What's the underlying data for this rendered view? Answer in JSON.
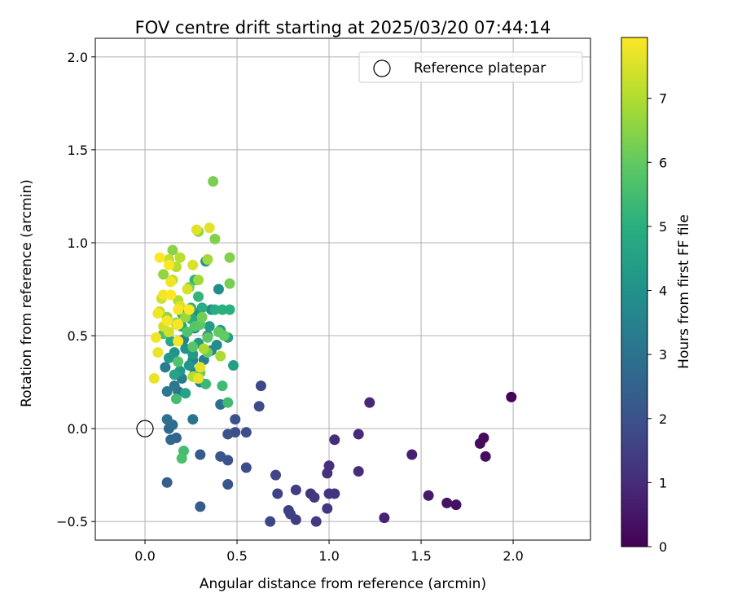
{
  "chart_data": {
    "type": "scatter",
    "title": "FOV centre drift starting at 2025/03/20 07:44:14",
    "xlabel": "Angular distance from reference (arcmin)",
    "ylabel": "Rotation from reference (arcmin)",
    "xlim": [
      -0.27,
      2.42
    ],
    "ylim": [
      -0.6,
      2.1
    ],
    "xticks": [
      "0.0",
      "0.5",
      "1.0",
      "1.5",
      "2.0"
    ],
    "xtick_values": [
      0,
      0.5,
      1.0,
      1.5,
      2.0
    ],
    "yticks": [
      "−0.5",
      "0.0",
      "0.5",
      "1.0",
      "1.5",
      "2.0"
    ],
    "ytick_values": [
      -0.5,
      0,
      0.5,
      1.0,
      1.5,
      2.0
    ],
    "grid": true,
    "colormap": "viridis",
    "colorbar": {
      "label": "Hours from first FF file",
      "range": [
        0,
        7.95
      ],
      "ticks": [
        "0",
        "1",
        "2",
        "3",
        "4",
        "5",
        "6",
        "7"
      ],
      "tick_values": [
        0,
        1,
        2,
        3,
        4,
        5,
        6,
        7
      ]
    },
    "legend": {
      "position": "top-right",
      "label": "Reference platepar"
    },
    "reference_point": {
      "x": 0.0,
      "y": 0.0
    },
    "points": [
      {
        "x": 1.99,
        "y": 0.17,
        "c": 0.05
      },
      {
        "x": 1.84,
        "y": -0.05,
        "c": 0.2
      },
      {
        "x": 1.82,
        "y": -0.08,
        "c": 0.25
      },
      {
        "x": 1.85,
        "y": -0.15,
        "c": 0.3
      },
      {
        "x": 1.69,
        "y": -0.41,
        "c": 0.35
      },
      {
        "x": 1.64,
        "y": -0.4,
        "c": 0.45
      },
      {
        "x": 1.54,
        "y": -0.36,
        "c": 0.6
      },
      {
        "x": 1.45,
        "y": -0.14,
        "c": 0.75
      },
      {
        "x": 1.3,
        "y": -0.48,
        "c": 0.8
      },
      {
        "x": 1.22,
        "y": 0.14,
        "c": 0.9
      },
      {
        "x": 1.16,
        "y": -0.03,
        "c": 0.95
      },
      {
        "x": 1.16,
        "y": -0.23,
        "c": 1.0
      },
      {
        "x": 1.03,
        "y": -0.06,
        "c": 1.05
      },
      {
        "x": 1.0,
        "y": -0.2,
        "c": 1.1
      },
      {
        "x": 0.99,
        "y": -0.24,
        "c": 1.15
      },
      {
        "x": 1.03,
        "y": -0.35,
        "c": 1.2
      },
      {
        "x": 1.0,
        "y": -0.35,
        "c": 1.2
      },
      {
        "x": 0.9,
        "y": -0.35,
        "c": 1.25
      },
      {
        "x": 0.92,
        "y": -0.37,
        "c": 1.3
      },
      {
        "x": 0.99,
        "y": -0.43,
        "c": 1.3
      },
      {
        "x": 0.93,
        "y": -0.5,
        "c": 1.35
      },
      {
        "x": 0.82,
        "y": -0.33,
        "c": 1.4
      },
      {
        "x": 0.82,
        "y": -0.49,
        "c": 1.45
      },
      {
        "x": 0.78,
        "y": -0.44,
        "c": 1.5
      },
      {
        "x": 0.79,
        "y": -0.46,
        "c": 1.55
      },
      {
        "x": 0.72,
        "y": -0.35,
        "c": 1.6
      },
      {
        "x": 0.71,
        "y": -0.25,
        "c": 1.65
      },
      {
        "x": 0.68,
        "y": -0.5,
        "c": 1.7
      },
      {
        "x": 0.63,
        "y": 0.23,
        "c": 1.75
      },
      {
        "x": 0.62,
        "y": 0.12,
        "c": 1.8
      },
      {
        "x": 0.55,
        "y": -0.21,
        "c": 1.85
      },
      {
        "x": 0.55,
        "y": -0.02,
        "c": 1.9
      },
      {
        "x": 0.49,
        "y": -0.02,
        "c": 1.9
      },
      {
        "x": 0.49,
        "y": 0.05,
        "c": 1.95
      },
      {
        "x": 0.45,
        "y": -0.03,
        "c": 2.0
      },
      {
        "x": 0.45,
        "y": -0.17,
        "c": 2.05
      },
      {
        "x": 0.45,
        "y": -0.3,
        "c": 2.1
      },
      {
        "x": 0.41,
        "y": -0.15,
        "c": 2.15
      },
      {
        "x": 0.3,
        "y": -0.14,
        "c": 2.2
      },
      {
        "x": 0.3,
        "y": -0.42,
        "c": 2.3
      },
      {
        "x": 0.12,
        "y": -0.29,
        "c": 2.4
      },
      {
        "x": 0.17,
        "y": -0.05,
        "c": 2.5
      },
      {
        "x": 0.14,
        "y": -0.06,
        "c": 2.6
      },
      {
        "x": 0.13,
        "y": 0.0,
        "c": 2.7
      },
      {
        "x": 0.15,
        "y": 0.02,
        "c": 2.8
      },
      {
        "x": 0.12,
        "y": 0.05,
        "c": 2.9
      },
      {
        "x": 0.41,
        "y": 0.13,
        "c": 2.9
      },
      {
        "x": 0.26,
        "y": 0.05,
        "c": 3.0
      },
      {
        "x": 0.18,
        "y": 0.2,
        "c": 3.1
      },
      {
        "x": 0.12,
        "y": 0.2,
        "c": 3.2
      },
      {
        "x": 0.16,
        "y": 0.23,
        "c": 3.2
      },
      {
        "x": 0.11,
        "y": 0.33,
        "c": 3.3
      },
      {
        "x": 0.2,
        "y": 0.27,
        "c": 3.3
      },
      {
        "x": 0.27,
        "y": 0.3,
        "c": 3.4
      },
      {
        "x": 0.32,
        "y": 0.37,
        "c": 3.4
      },
      {
        "x": 0.36,
        "y": 0.42,
        "c": 3.5
      },
      {
        "x": 0.3,
        "y": 0.25,
        "c": 3.5
      },
      {
        "x": 0.26,
        "y": 0.37,
        "c": 3.6
      },
      {
        "x": 0.21,
        "y": 0.48,
        "c": 3.6
      },
      {
        "x": 0.27,
        "y": 0.54,
        "c": 3.7
      },
      {
        "x": 0.34,
        "y": 0.5,
        "c": 3.7
      },
      {
        "x": 0.39,
        "y": 0.45,
        "c": 3.8
      },
      {
        "x": 0.36,
        "y": 0.64,
        "c": 3.8
      },
      {
        "x": 0.28,
        "y": 0.62,
        "c": 3.9
      },
      {
        "x": 0.4,
        "y": 0.75,
        "c": 3.9
      },
      {
        "x": 0.33,
        "y": 0.9,
        "c": 4.0
      },
      {
        "x": 0.22,
        "y": 0.43,
        "c": 4.0
      },
      {
        "x": 0.24,
        "y": 0.34,
        "c": 4.1
      },
      {
        "x": 0.16,
        "y": 0.41,
        "c": 4.1
      },
      {
        "x": 0.13,
        "y": 0.38,
        "c": 4.2
      },
      {
        "x": 0.19,
        "y": 0.31,
        "c": 4.2
      },
      {
        "x": 0.26,
        "y": 0.4,
        "c": 4.3
      },
      {
        "x": 0.29,
        "y": 0.46,
        "c": 4.3
      },
      {
        "x": 0.35,
        "y": 0.55,
        "c": 4.4
      },
      {
        "x": 0.41,
        "y": 0.53,
        "c": 4.4
      },
      {
        "x": 0.45,
        "y": 0.49,
        "c": 4.5
      },
      {
        "x": 0.48,
        "y": 0.34,
        "c": 4.5
      },
      {
        "x": 0.22,
        "y": 0.19,
        "c": 4.6
      },
      {
        "x": 0.16,
        "y": 0.29,
        "c": 4.6
      },
      {
        "x": 0.14,
        "y": 0.47,
        "c": 4.7
      },
      {
        "x": 0.2,
        "y": 0.55,
        "c": 4.7
      },
      {
        "x": 0.25,
        "y": 0.59,
        "c": 4.8
      },
      {
        "x": 0.28,
        "y": 0.58,
        "c": 4.8
      },
      {
        "x": 0.31,
        "y": 0.65,
        "c": 4.9
      },
      {
        "x": 0.38,
        "y": 0.64,
        "c": 4.9
      },
      {
        "x": 0.42,
        "y": 0.64,
        "c": 5.0
      },
      {
        "x": 0.46,
        "y": 0.64,
        "c": 5.0
      },
      {
        "x": 0.27,
        "y": 0.8,
        "c": 5.1
      },
      {
        "x": 0.2,
        "y": 0.62,
        "c": 5.1
      },
      {
        "x": 0.25,
        "y": 0.65,
        "c": 5.2
      },
      {
        "x": 0.29,
        "y": 0.71,
        "c": 5.2
      },
      {
        "x": 0.33,
        "y": 0.24,
        "c": 5.3
      },
      {
        "x": 0.42,
        "y": 0.23,
        "c": 5.4
      },
      {
        "x": 0.45,
        "y": 0.14,
        "c": 5.4
      },
      {
        "x": 0.17,
        "y": 0.16,
        "c": 5.5
      },
      {
        "x": 0.21,
        "y": -0.12,
        "c": 5.5
      },
      {
        "x": 0.2,
        "y": -0.16,
        "c": 5.6
      },
      {
        "x": 0.1,
        "y": 0.51,
        "c": 5.6
      },
      {
        "x": 0.18,
        "y": 0.36,
        "c": 5.7
      },
      {
        "x": 0.23,
        "y": 0.52,
        "c": 5.7
      },
      {
        "x": 0.26,
        "y": 0.44,
        "c": 5.8
      },
      {
        "x": 0.27,
        "y": 0.55,
        "c": 5.8
      },
      {
        "x": 0.3,
        "y": 0.56,
        "c": 5.9
      },
      {
        "x": 0.34,
        "y": 0.49,
        "c": 5.9
      },
      {
        "x": 0.4,
        "y": 0.52,
        "c": 6.0
      },
      {
        "x": 0.43,
        "y": 0.5,
        "c": 6.0
      },
      {
        "x": 0.34,
        "y": 0.41,
        "c": 6.1
      },
      {
        "x": 0.3,
        "y": 0.3,
        "c": 6.1
      },
      {
        "x": 0.24,
        "y": 0.76,
        "c": 6.2
      },
      {
        "x": 0.31,
        "y": 0.6,
        "c": 6.2
      },
      {
        "x": 0.37,
        "y": 1.33,
        "c": 6.3
      },
      {
        "x": 0.46,
        "y": 0.78,
        "c": 6.3
      },
      {
        "x": 0.46,
        "y": 0.92,
        "c": 6.4
      },
      {
        "x": 0.38,
        "y": 1.02,
        "c": 6.4
      },
      {
        "x": 0.29,
        "y": 1.06,
        "c": 6.5
      },
      {
        "x": 0.15,
        "y": 0.96,
        "c": 6.5
      },
      {
        "x": 0.1,
        "y": 0.83,
        "c": 6.6
      },
      {
        "x": 0.12,
        "y": 0.6,
        "c": 6.6
      },
      {
        "x": 0.17,
        "y": 0.57,
        "c": 6.7
      },
      {
        "x": 0.22,
        "y": 0.6,
        "c": 6.7
      },
      {
        "x": 0.29,
        "y": 0.8,
        "c": 6.8
      },
      {
        "x": 0.34,
        "y": 0.91,
        "c": 6.8
      },
      {
        "x": 0.41,
        "y": 0.39,
        "c": 6.9
      },
      {
        "x": 0.32,
        "y": 0.43,
        "c": 6.9
      },
      {
        "x": 0.26,
        "y": 0.28,
        "c": 7.0
      },
      {
        "x": 0.18,
        "y": 0.69,
        "c": 7.0
      },
      {
        "x": 0.17,
        "y": 0.87,
        "c": 7.1
      },
      {
        "x": 0.19,
        "y": 0.92,
        "c": 7.1
      },
      {
        "x": 0.15,
        "y": 0.8,
        "c": 7.2
      },
      {
        "x": 0.13,
        "y": 0.91,
        "c": 7.2
      },
      {
        "x": 0.09,
        "y": 0.7,
        "c": 7.3
      },
      {
        "x": 0.08,
        "y": 0.63,
        "c": 7.3
      },
      {
        "x": 0.1,
        "y": 0.55,
        "c": 7.4
      },
      {
        "x": 0.13,
        "y": 0.52,
        "c": 7.4
      },
      {
        "x": 0.17,
        "y": 0.56,
        "c": 7.4
      },
      {
        "x": 0.19,
        "y": 0.66,
        "c": 7.5
      },
      {
        "x": 0.23,
        "y": 0.75,
        "c": 7.5
      },
      {
        "x": 0.26,
        "y": 0.88,
        "c": 7.5
      },
      {
        "x": 0.28,
        "y": 1.07,
        "c": 7.6
      },
      {
        "x": 0.35,
        "y": 1.08,
        "c": 7.6
      },
      {
        "x": 0.3,
        "y": 0.33,
        "c": 7.6
      },
      {
        "x": 0.29,
        "y": 0.27,
        "c": 7.7
      },
      {
        "x": 0.05,
        "y": 0.27,
        "c": 7.7
      },
      {
        "x": 0.07,
        "y": 0.41,
        "c": 7.7
      },
      {
        "x": 0.06,
        "y": 0.49,
        "c": 7.8
      },
      {
        "x": 0.07,
        "y": 0.62,
        "c": 7.8
      },
      {
        "x": 0.1,
        "y": 0.72,
        "c": 7.8
      },
      {
        "x": 0.14,
        "y": 0.79,
        "c": 7.8
      },
      {
        "x": 0.18,
        "y": 0.64,
        "c": 7.9
      },
      {
        "x": 0.18,
        "y": 0.56,
        "c": 7.9
      },
      {
        "x": 0.18,
        "y": 0.47,
        "c": 7.9
      },
      {
        "x": 0.12,
        "y": 0.58,
        "c": 7.9
      },
      {
        "x": 0.14,
        "y": 0.72,
        "c": 7.95
      },
      {
        "x": 0.08,
        "y": 0.92,
        "c": 7.95
      },
      {
        "x": 0.13,
        "y": 0.88,
        "c": 7.95
      },
      {
        "x": 0.24,
        "y": 0.64,
        "c": 7.95
      }
    ]
  }
}
